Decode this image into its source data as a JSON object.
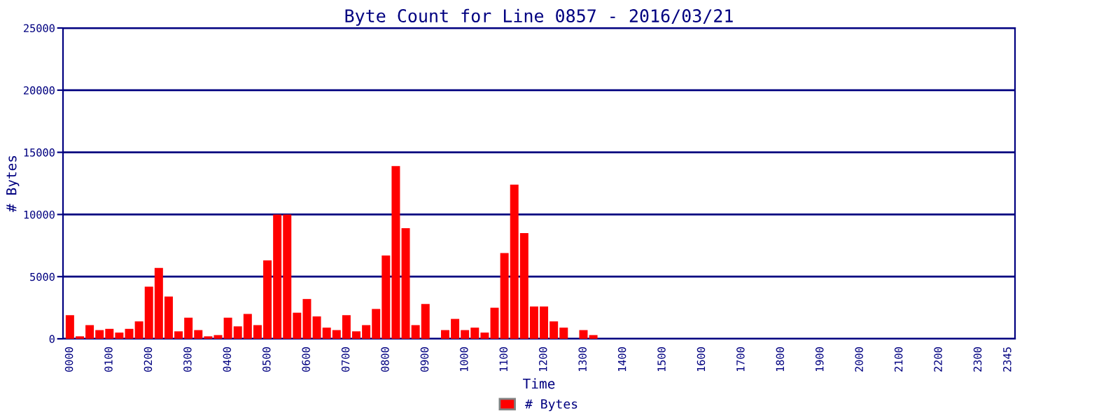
{
  "chart_data": {
    "type": "bar",
    "title": "Byte Count for Line 0857 - 2016/03/21",
    "xlabel": "Time",
    "ylabel": "# Bytes",
    "categories": [
      "0000",
      null,
      null,
      null,
      "0100",
      null,
      null,
      null,
      "0200",
      null,
      null,
      null,
      "0300",
      null,
      null,
      null,
      "0400",
      null,
      null,
      null,
      "0500",
      null,
      null,
      null,
      "0600",
      null,
      null,
      null,
      "0700",
      null,
      null,
      null,
      "0800",
      null,
      null,
      null,
      "0900",
      null,
      null,
      null,
      "1000",
      null,
      null,
      null,
      "1100",
      null,
      null,
      null,
      "1200",
      null,
      null,
      null,
      "1300",
      null,
      null,
      null,
      "1400",
      null,
      null,
      null,
      "1500",
      null,
      null,
      null,
      "1600",
      null,
      null,
      null,
      "1700",
      null,
      null,
      null,
      "1800",
      null,
      null,
      null,
      "1900",
      null,
      null,
      null,
      "2000",
      null,
      null,
      null,
      "2100",
      null,
      null,
      null,
      "2200",
      null,
      null,
      null,
      "2300",
      null,
      null,
      "2345"
    ],
    "series": [
      {
        "name": "# Bytes",
        "color": "#ff0000",
        "values": [
          1900,
          200,
          1100,
          700,
          800,
          500,
          800,
          1400,
          4200,
          5700,
          3400,
          600,
          1700,
          700,
          200,
          300,
          1700,
          1000,
          2000,
          1100,
          6300,
          10000,
          10000,
          2100,
          3200,
          1800,
          900,
          700,
          1900,
          600,
          1100,
          2400,
          6700,
          13900,
          8900,
          1100,
          2800,
          0,
          700,
          1600,
          700,
          900,
          500,
          2500,
          6900,
          12400,
          8500,
          2600,
          2600,
          1400,
          900,
          0,
          700,
          300,
          0,
          0,
          0,
          0,
          0,
          0,
          0,
          0,
          0,
          0,
          0,
          0,
          0,
          0,
          0,
          0,
          0,
          0,
          0,
          0,
          0,
          0,
          0,
          0,
          0,
          0,
          0,
          0,
          0,
          0,
          0,
          0,
          0,
          0,
          0,
          0,
          0,
          0,
          0,
          0,
          0,
          0
        ]
      }
    ],
    "ylim": [
      0,
      25000
    ],
    "yticks": [
      0,
      5000,
      10000,
      15000,
      20000,
      25000
    ],
    "grid": "y",
    "legend": "bottom"
  }
}
